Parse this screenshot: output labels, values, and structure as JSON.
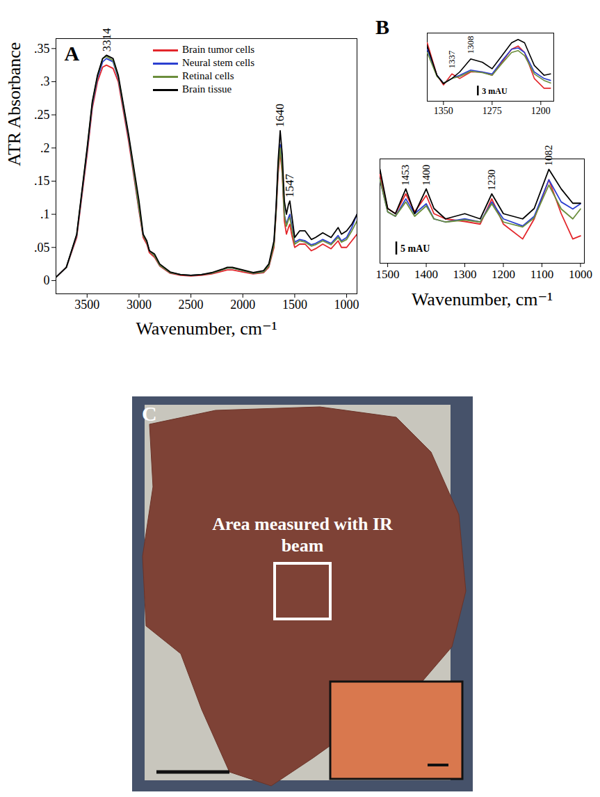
{
  "chart_data": [
    {
      "type": "line",
      "title": "A",
      "x_label": "Wavenumber, cm⁻¹",
      "y_label": "ATR Absorbance",
      "x": [
        3800,
        3700,
        3600,
        3500,
        3450,
        3400,
        3350,
        3314,
        3250,
        3200,
        3100,
        3000,
        2960,
        2925,
        2900,
        2850,
        2800,
        2700,
        2600,
        2500,
        2400,
        2300,
        2200,
        2150,
        2100,
        2000,
        1900,
        1800,
        1750,
        1700,
        1680,
        1660,
        1640,
        1620,
        1600,
        1580,
        1560,
        1547,
        1530,
        1500,
        1453,
        1400,
        1340,
        1300,
        1230,
        1150,
        1082,
        1050,
        1000,
        950,
        900
      ],
      "series": [
        {
          "name": "Brain tumor cells",
          "color": "#e3262b",
          "values": [
            0.005,
            0.02,
            0.065,
            0.19,
            0.26,
            0.3,
            0.322,
            0.325,
            0.32,
            0.3,
            0.21,
            0.105,
            0.065,
            0.055,
            0.042,
            0.035,
            0.022,
            0.011,
            0.008,
            0.007,
            0.008,
            0.01,
            0.014,
            0.016,
            0.016,
            0.013,
            0.01,
            0.012,
            0.02,
            0.05,
            0.1,
            0.16,
            0.195,
            0.16,
            0.09,
            0.07,
            0.08,
            0.085,
            0.07,
            0.05,
            0.055,
            0.055,
            0.045,
            0.048,
            0.055,
            0.048,
            0.06,
            0.05,
            0.05,
            0.06,
            0.07
          ]
        },
        {
          "name": "Neural stem cells",
          "color": "#2b3fd0",
          "values": [
            0.005,
            0.02,
            0.068,
            0.195,
            0.265,
            0.305,
            0.33,
            0.335,
            0.33,
            0.305,
            0.215,
            0.108,
            0.068,
            0.058,
            0.045,
            0.037,
            0.023,
            0.012,
            0.009,
            0.008,
            0.009,
            0.011,
            0.016,
            0.019,
            0.019,
            0.015,
            0.011,
            0.013,
            0.022,
            0.055,
            0.105,
            0.17,
            0.205,
            0.17,
            0.1,
            0.085,
            0.095,
            0.1,
            0.085,
            0.058,
            0.062,
            0.06,
            0.054,
            0.056,
            0.062,
            0.056,
            0.068,
            0.06,
            0.065,
            0.08,
            0.1
          ]
        },
        {
          "name": "Retinal cells",
          "color": "#6b8e3c",
          "values": [
            0.005,
            0.02,
            0.069,
            0.198,
            0.268,
            0.308,
            0.335,
            0.338,
            0.332,
            0.307,
            0.217,
            0.109,
            0.068,
            0.058,
            0.045,
            0.037,
            0.023,
            0.012,
            0.009,
            0.008,
            0.009,
            0.011,
            0.016,
            0.019,
            0.019,
            0.015,
            0.011,
            0.013,
            0.022,
            0.054,
            0.103,
            0.168,
            0.2,
            0.165,
            0.098,
            0.082,
            0.092,
            0.095,
            0.08,
            0.055,
            0.06,
            0.058,
            0.052,
            0.054,
            0.06,
            0.054,
            0.065,
            0.058,
            0.062,
            0.075,
            0.09
          ]
        },
        {
          "name": "Brain tissue",
          "color": "#000000",
          "values": [
            0.005,
            0.02,
            0.07,
            0.2,
            0.27,
            0.31,
            0.335,
            0.34,
            0.335,
            0.31,
            0.22,
            0.12,
            0.07,
            0.06,
            0.045,
            0.04,
            0.025,
            0.013,
            0.009,
            0.008,
            0.009,
            0.012,
            0.017,
            0.02,
            0.02,
            0.016,
            0.012,
            0.015,
            0.025,
            0.06,
            0.11,
            0.18,
            0.226,
            0.19,
            0.12,
            0.1,
            0.115,
            0.12,
            0.1,
            0.065,
            0.075,
            0.075,
            0.062,
            0.065,
            0.072,
            0.065,
            0.08,
            0.07,
            0.075,
            0.085,
            0.1
          ]
        }
      ],
      "xlim": [
        3800,
        900
      ],
      "ylim": [
        -0.02,
        0.365
      ],
      "xticks": [
        3500,
        3000,
        2500,
        2000,
        1500,
        1000
      ],
      "yticks": [
        0,
        {
          "value": 0.05,
          "label": ".05"
        },
        {
          "value": 0.1,
          "label": ".1"
        },
        {
          "value": 0.15,
          "label": ".15"
        },
        {
          "value": 0.2,
          "label": ".2"
        },
        {
          "value": 0.25,
          "label": ".25"
        },
        {
          "value": 0.3,
          "label": ".3"
        },
        {
          "value": 0.35,
          "label": ".35"
        }
      ],
      "legend": "top",
      "annotations": [
        {
          "x": 3314,
          "y": 0.34,
          "text": "3314"
        },
        {
          "x": 1640,
          "y": 0.226,
          "text": "1640"
        },
        {
          "x": 1547,
          "y": 0.12,
          "text": "1547"
        }
      ]
    },
    {
      "type": "line",
      "title": "B",
      "x_label": "Wavenumber, cm⁻¹",
      "x": [
        1520,
        1500,
        1480,
        1453,
        1430,
        1400,
        1380,
        1350,
        1300,
        1260,
        1230,
        1200,
        1150,
        1120,
        1082,
        1050,
        1020,
        1000
      ],
      "series": [
        {
          "color": "#e3262b",
          "values": [
            42,
            29,
            27,
            34.6,
            27.7,
            34,
            27,
            25,
            24,
            23,
            32.7,
            23,
            17.3,
            25,
            40,
            27,
            17.3,
            18.5
          ]
        },
        {
          "color": "#2b3fd0",
          "values": [
            40,
            27.7,
            26,
            32.7,
            27,
            30.8,
            25,
            23.8,
            25,
            23.8,
            31.5,
            25,
            22.3,
            26,
            40,
            31.5,
            28.8,
            30.8
          ]
        },
        {
          "color": "#6b8e3c",
          "values": [
            40,
            27.7,
            26,
            31.5,
            26,
            30,
            25,
            23.8,
            24.6,
            23.8,
            30.8,
            23.8,
            21.9,
            25.4,
            38,
            28.8,
            25,
            28.8
          ]
        },
        {
          "color": "#000000",
          "values": [
            44,
            29,
            27,
            36.5,
            27,
            36.5,
            29,
            25,
            27,
            25,
            34.6,
            27,
            25,
            29,
            44,
            36.5,
            31,
            31
          ]
        }
      ],
      "xlim": [
        1520,
        990
      ],
      "ylim": [
        8,
        48
      ],
      "xticks": [
        1500,
        1400,
        1300,
        1200,
        1100,
        1000
      ],
      "tick_labels": "x",
      "scale_bar": {
        "value": 5,
        "label": "5 mAU"
      },
      "annotations": [
        {
          "x": 1453,
          "y": 36.5,
          "text": "1453"
        },
        {
          "x": 1400,
          "y": 36.5,
          "text": "1400"
        },
        {
          "x": 1230,
          "y": 34.6,
          "text": "1230"
        },
        {
          "x": 1082,
          "y": 44,
          "text": "1082"
        }
      ]
    },
    {
      "type": "line",
      "x": [
        1375,
        1360,
        1350,
        1337,
        1325,
        1308,
        1290,
        1275,
        1260,
        1245,
        1235,
        1225,
        1210,
        1195,
        1185
      ],
      "series": [
        {
          "color": "#e3262b",
          "values": [
            18,
            8,
            5,
            8.4,
            7,
            9,
            9,
            8,
            12,
            16,
            17,
            15,
            7,
            4,
            4
          ]
        },
        {
          "color": "#2b3fd0",
          "values": [
            16,
            8,
            5.6,
            7,
            8,
            9.6,
            9,
            8.4,
            12.4,
            16,
            16.4,
            15,
            9,
            7,
            6.4
          ]
        },
        {
          "color": "#6b8e3c",
          "values": [
            15,
            7.6,
            5.6,
            7,
            7.6,
            9.2,
            8.8,
            8,
            11.6,
            15,
            15.6,
            14,
            8.4,
            6.4,
            5.6
          ]
        },
        {
          "color": "#000000",
          "values": [
            17,
            8,
            5.4,
            7,
            9,
            13,
            12,
            10,
            14,
            18,
            19,
            18,
            11,
            8,
            8.4
          ]
        }
      ],
      "xlim": [
        1375,
        1180
      ],
      "ylim": [
        0,
        21
      ],
      "xticks": [
        1350,
        1275,
        1200
      ],
      "tick_labels": "x",
      "scale_bar": {
        "value": 3,
        "label": "3 mAU"
      },
      "annotations": [
        {
          "x": 1337,
          "y": 9,
          "text": "1337"
        },
        {
          "x": 1308,
          "y": 13.5,
          "text": "1308"
        }
      ]
    }
  ],
  "image_panel": {
    "title": "C",
    "annotation": "Area measured with IR beam"
  }
}
